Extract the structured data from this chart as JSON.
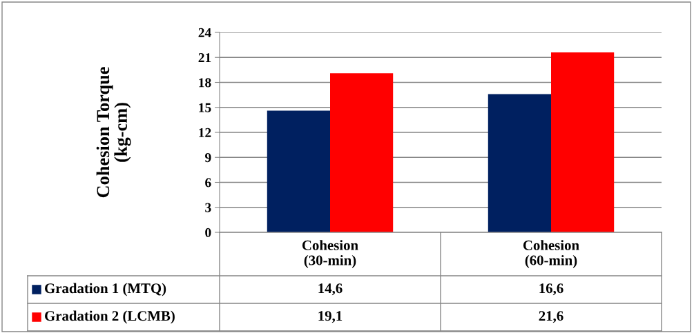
{
  "chart_data": {
    "type": "bar",
    "ylabel": "Cohesion Torque\n(kg-cm)",
    "categories": [
      "Cohesion\n(30-min)",
      "Cohesion\n(60-min)"
    ],
    "series": [
      {
        "name": "Gradation 1 (MTQ)",
        "color": "#002060",
        "values": [
          14.6,
          16.6
        ],
        "value_labels": [
          "14,6",
          "16,6"
        ]
      },
      {
        "name": "Gradation 2 (LCMB)",
        "color": "#ff0000",
        "values": [
          19.1,
          21.6
        ],
        "value_labels": [
          "19,1",
          "21,6"
        ]
      }
    ],
    "ylim": [
      0,
      24
    ],
    "yticks": [
      0,
      3,
      6,
      9,
      12,
      15,
      18,
      21,
      24
    ],
    "grid": "y",
    "legend": "bottom"
  }
}
